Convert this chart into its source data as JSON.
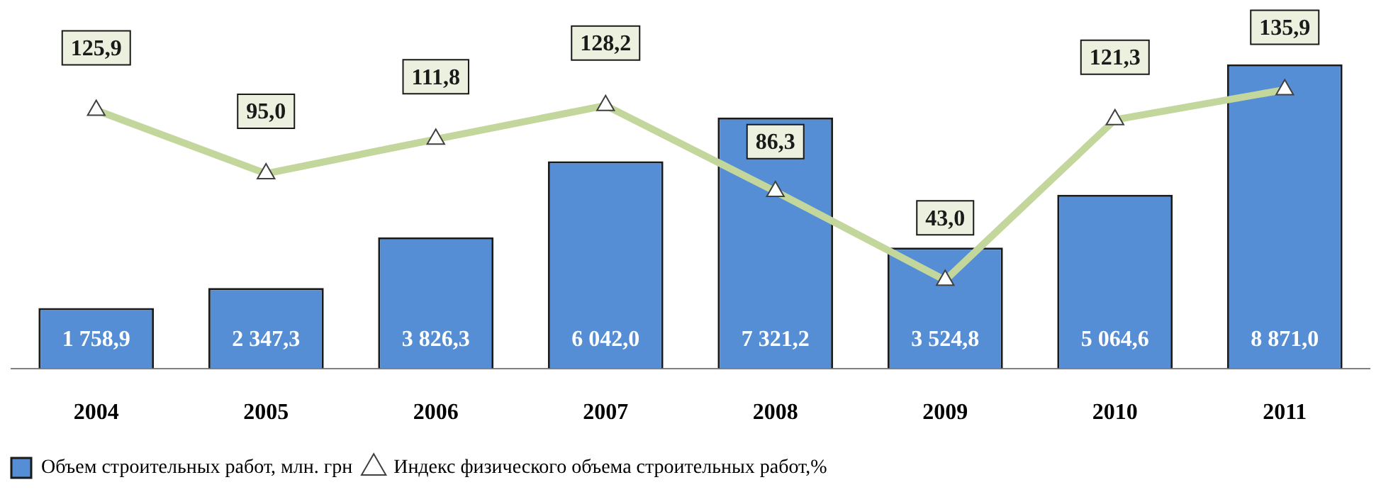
{
  "chart_data": {
    "type": "bar",
    "categories": [
      "2004",
      "2005",
      "2006",
      "2007",
      "2008",
      "2009",
      "2010",
      "2011"
    ],
    "series": [
      {
        "name": "Объем строительных работ, млн. грн",
        "color": "#558ed5",
        "values": [
          1758.9,
          2347.3,
          3826.3,
          6042.0,
          7321.2,
          3524.8,
          5064.6,
          8871.0
        ],
        "value_labels": [
          "1 758,9",
          "2 347,3",
          "3 826,3",
          "6 042,0",
          "7 321,2",
          "3 524,8",
          "5 064,6",
          "8 871,0"
        ]
      },
      {
        "type": "line",
        "axis": "y2",
        "name": "Индекс физического объема строительных работ,%",
        "color": "#c3d69b",
        "values": [
          125.9,
          95.0,
          111.8,
          128.2,
          86.3,
          43.0,
          121.3,
          135.9
        ],
        "value_labels": [
          "125,9",
          "95,0",
          "111,8",
          "128,2",
          "86,3",
          "43,0",
          "121,3",
          "135,9"
        ]
      }
    ],
    "marker": "triangle",
    "legend": "bottom",
    "grid": false,
    "tick_labels": "x"
  }
}
